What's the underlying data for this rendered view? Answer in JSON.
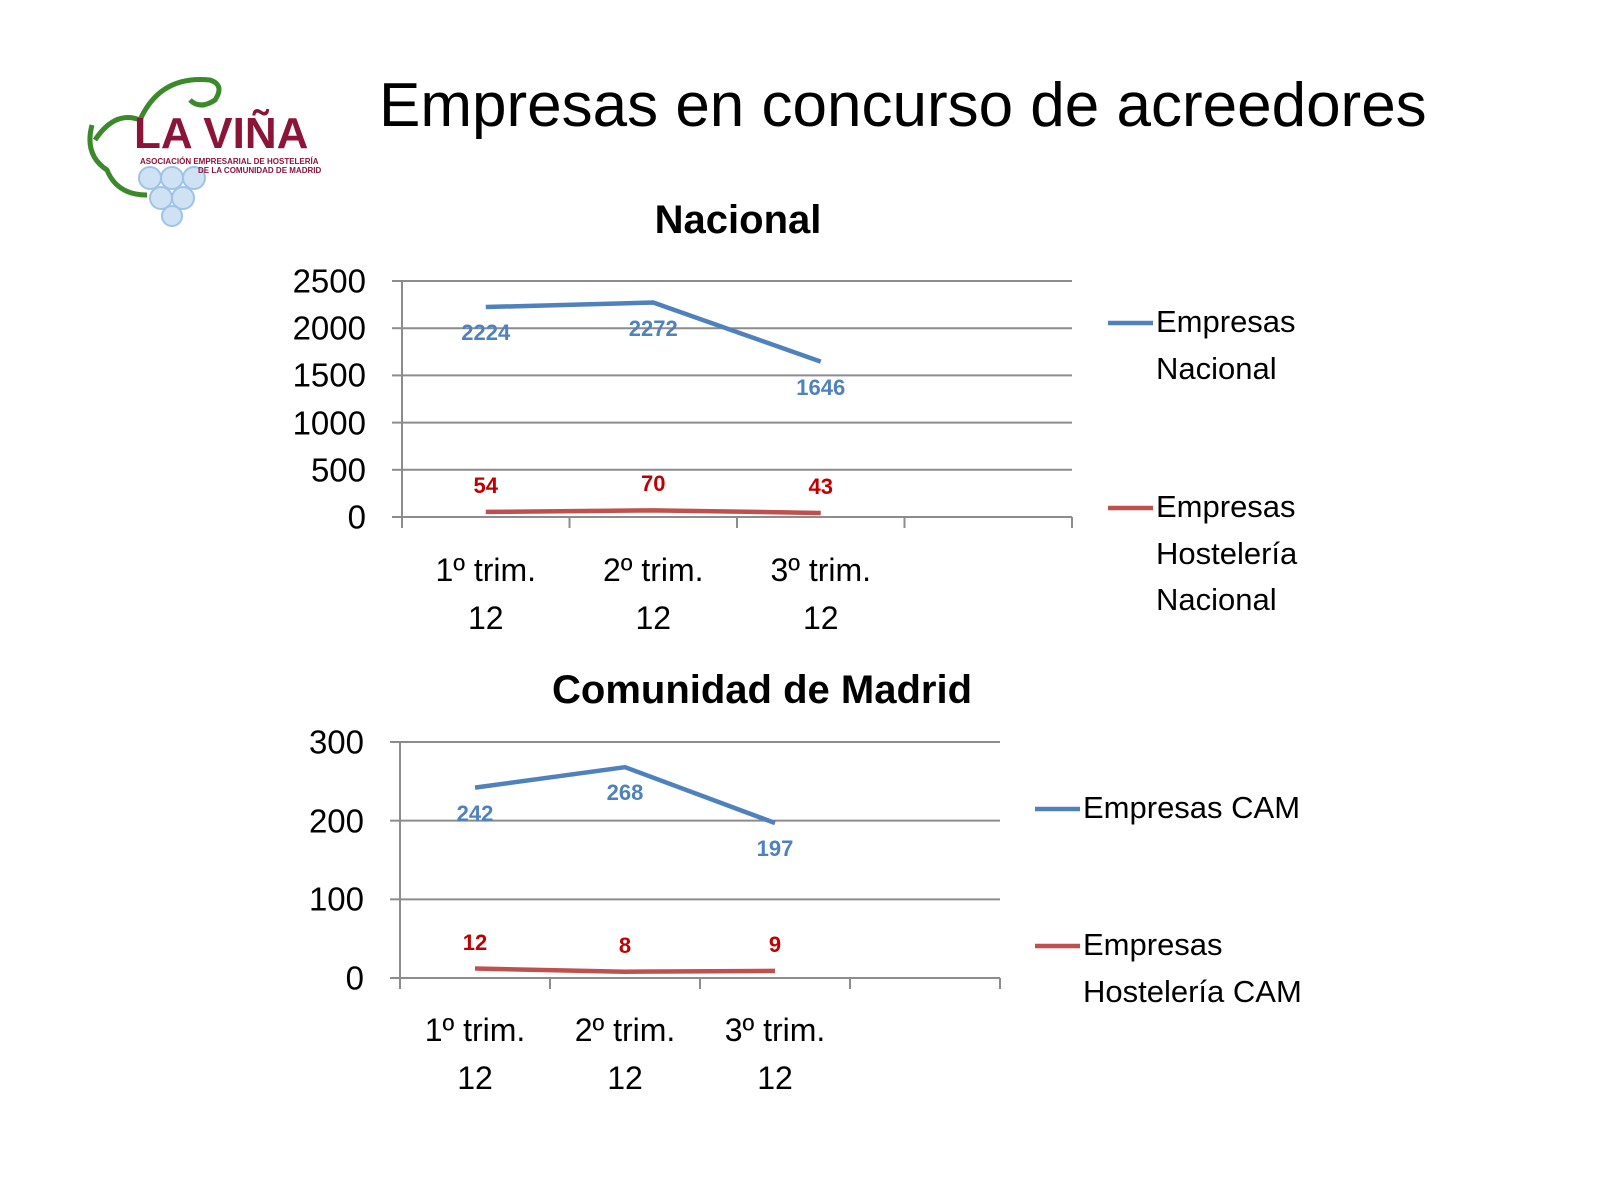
{
  "title": "Empresas en concurso de acreedores",
  "logo": {
    "name": "LA VIÑA",
    "line1": "ASOCIACIÓN EMPRESARIAL DE HOSTELERÍA",
    "line2": "DE LA COMUNIDAD DE MADRID"
  },
  "chart_data": [
    {
      "type": "line",
      "title": "Nacional",
      "categories": [
        "1º trim. 12",
        "2º trim. 12",
        "3º trim. 12",
        null
      ],
      "series": [
        {
          "name": "Empresas Nacional",
          "color": "#4f81bd",
          "values": [
            2224,
            2272,
            1646,
            null
          ]
        },
        {
          "name": "Empresas Hostelería Nacional",
          "color": "#c0504d",
          "values": [
            54,
            70,
            43,
            null
          ]
        }
      ],
      "ylim": [
        0,
        2500
      ],
      "yticks": [
        0,
        500,
        1000,
        1500,
        2000,
        2500
      ],
      "grid": true,
      "legend": "right"
    },
    {
      "type": "line",
      "title": "Comunidad de Madrid",
      "categories": [
        "1º trim. 12",
        "2º trim. 12",
        "3º trim. 12",
        null
      ],
      "series": [
        {
          "name": "Empresas CAM",
          "color": "#4f81bd",
          "values": [
            242,
            268,
            197,
            null
          ]
        },
        {
          "name": "Empresas Hostelería CAM",
          "color": "#c0504d",
          "values": [
            12,
            8,
            9,
            null
          ]
        }
      ],
      "ylim": [
        0,
        300
      ],
      "yticks": [
        0,
        100,
        200,
        300
      ],
      "grid": true,
      "legend": "right"
    }
  ]
}
